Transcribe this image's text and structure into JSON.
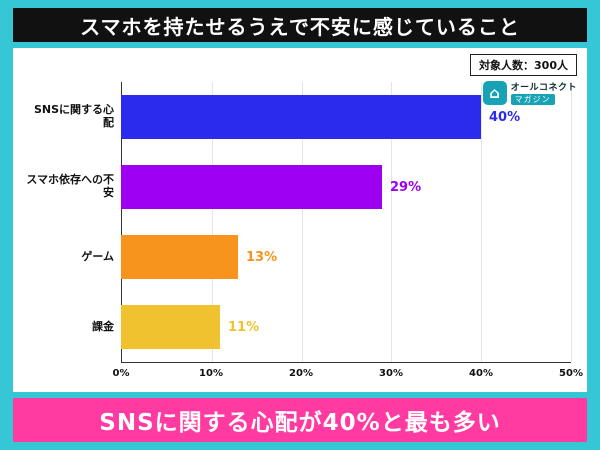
{
  "title": "スマホを持たせるうえで不安に感じていること",
  "sample_label": "対象人数：300人",
  "logo": {
    "icon": "house-icon",
    "glyph": "⌂",
    "line1": "オールコネクト",
    "line2": "マガジン"
  },
  "conclusion": "SNSに関する心配が40%と最も多い",
  "chart_data": {
    "type": "bar",
    "orientation": "horizontal",
    "title": "スマホを持たせるうえで不安に感じていること",
    "categories": [
      "SNSに関する心配",
      "スマホ依存への不安",
      "ゲーム",
      "課金"
    ],
    "values": [
      40,
      29,
      13,
      11
    ],
    "value_labels": [
      "40%",
      "29%",
      "13%",
      "11%"
    ],
    "bar_colors": [
      "#2b2bee",
      "#9d00f0",
      "#f7941d",
      "#f0c230"
    ],
    "x_ticks": [
      "0%",
      "10%",
      "20%",
      "30%",
      "40%",
      "50%"
    ],
    "xlim": [
      0,
      50
    ],
    "grid": true,
    "legend": "none"
  },
  "colors": {
    "background": "#35c7d6",
    "title_bg": "#111111",
    "panel_bg": "#ffffff",
    "banner_bg": "#ff3ba1",
    "logo_teal": "#17a3b5",
    "axis": "#333333"
  }
}
